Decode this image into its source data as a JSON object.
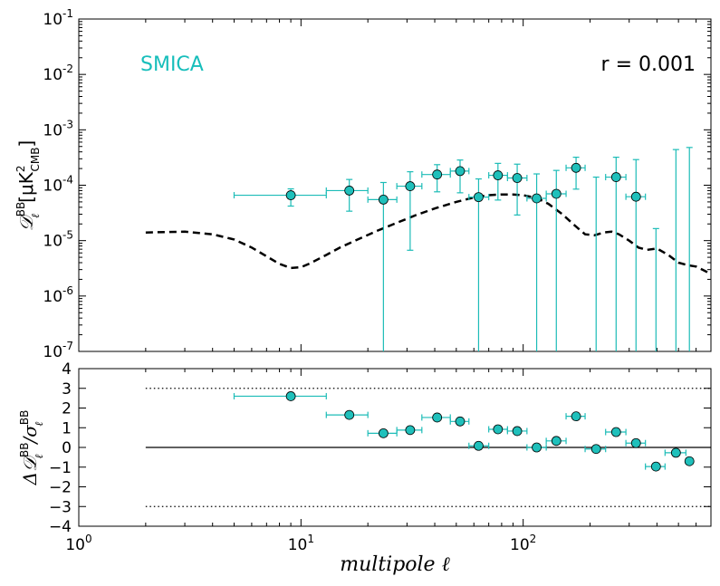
{
  "chart_data": [
    {
      "type": "scatter",
      "panel": "top",
      "xscale": "log",
      "yscale": "log",
      "xlim": [
        1,
        700
      ],
      "ylim": [
        1e-07,
        0.1
      ],
      "ylabel": "D_ℓ^BB [μK²_CMB]",
      "ylabel_main": "𝒟",
      "ylabel_sup": "BB",
      "ylabel_sub": "ℓ",
      "ylabel_units": "[μK",
      "ylabel_units_sup": "2",
      "ylabel_units_sub": "CMB",
      "ylabel_units_close": "]",
      "yticks": [
        1e-07,
        1e-06,
        1e-05,
        0.0001,
        0.001,
        0.01,
        0.1
      ],
      "ytick_bases": [
        "10",
        "10",
        "10",
        "10",
        "10",
        "10",
        "10"
      ],
      "ytick_exps": [
        "-7",
        "-6",
        "-5",
        "-4",
        "-3",
        "-2",
        "-1"
      ],
      "annotation_left": "SMICA",
      "annotation_right": "r = 0.001",
      "annotation_left_color": "#17bebb",
      "data_color": "#1cbcb7",
      "model_color": "#000000",
      "model": {
        "x": [
          2,
          3,
          4,
          5,
          6,
          7,
          8,
          9,
          10,
          11,
          13,
          15,
          18,
          22,
          27,
          33,
          40,
          50,
          60,
          70,
          80,
          90,
          100,
          110,
          120,
          130,
          150,
          170,
          190,
          210,
          230,
          250,
          270,
          300,
          330,
          360,
          400,
          450,
          500,
          550,
          600,
          650,
          700
        ],
        "y": [
          1.4e-05,
          1.45e-05,
          1.3e-05,
          1.05e-05,
          7.5e-06,
          5.2e-06,
          3.8e-06,
          3.2e-06,
          3.3e-06,
          3.9e-06,
          5.5e-06,
          7.5e-06,
          1.05e-05,
          1.5e-05,
          2.1e-05,
          2.9e-05,
          3.8e-05,
          5e-05,
          6e-05,
          6.6e-05,
          6.8e-05,
          6.8e-05,
          6.6e-05,
          6.1e-05,
          5.4e-05,
          4.6e-05,
          3e-05,
          1.9e-05,
          1.3e-05,
          1.25e-05,
          1.4e-05,
          1.45e-05,
          1.3e-05,
          1e-05,
          7.5e-06,
          6.8e-06,
          7.2e-06,
          5.5e-06,
          4e-06,
          3.6e-06,
          3.4e-06,
          2.9e-06,
          2.5e-06
        ]
      },
      "points": [
        {
          "x": 9,
          "xlo": 5,
          "xhi": 13,
          "y": 6.6e-05,
          "ylo": 4.2e-05,
          "yhi": 8.6e-05
        },
        {
          "x": 16.5,
          "xlo": 13,
          "xhi": 20,
          "y": 8e-05,
          "ylo": 3.4e-05,
          "yhi": 0.000127
        },
        {
          "x": 23.5,
          "xlo": 20,
          "xhi": 27,
          "y": 5.5e-05,
          "ylo": 1e-07,
          "yhi": 0.000112
        },
        {
          "x": 31,
          "xlo": 27,
          "xhi": 35,
          "y": 9.6e-05,
          "ylo": 6.7e-06,
          "yhi": 0.000175
        },
        {
          "x": 41,
          "xlo": 35,
          "xhi": 47,
          "y": 0.000156,
          "ylo": 7.6e-05,
          "yhi": 0.000235
        },
        {
          "x": 52,
          "xlo": 47,
          "xhi": 57,
          "y": 0.00018,
          "ylo": 7.3e-05,
          "yhi": 0.000285
        },
        {
          "x": 63,
          "xlo": 57,
          "xhi": 70,
          "y": 6.1e-05,
          "ylo": 1e-07,
          "yhi": 0.00013
        },
        {
          "x": 77,
          "xlo": 70,
          "xhi": 85,
          "y": 0.000151,
          "ylo": 5.4e-05,
          "yhi": 0.000248
        },
        {
          "x": 94,
          "xlo": 85,
          "xhi": 104,
          "y": 0.000135,
          "ylo": 2.9e-05,
          "yhi": 0.00024
        },
        {
          "x": 115,
          "xlo": 104,
          "xhi": 127,
          "y": 5.8e-05,
          "ylo": 1e-07,
          "yhi": 0.00016
        },
        {
          "x": 141,
          "xlo": 127,
          "xhi": 156,
          "y": 7e-05,
          "ylo": 1e-07,
          "yhi": 0.000185
        },
        {
          "x": 173,
          "xlo": 156,
          "xhi": 190,
          "y": 0.000206,
          "ylo": 8.5e-05,
          "yhi": 0.00032
        },
        {
          "x": 213,
          "xlo": 190,
          "xhi": 235,
          "y": null,
          "ylo": 1e-07,
          "yhi": 0.00014
        },
        {
          "x": 262,
          "xlo": 235,
          "xhi": 290,
          "y": 0.00014,
          "ylo": 1e-07,
          "yhi": 0.00032
        },
        {
          "x": 322,
          "xlo": 290,
          "xhi": 355,
          "y": 6.2e-05,
          "ylo": 1e-07,
          "yhi": 0.00029
        },
        {
          "x": 396,
          "xlo": 355,
          "xhi": 435,
          "y": null,
          "ylo": 1e-07,
          "yhi": 1.65e-05
        },
        {
          "x": 487,
          "xlo": 435,
          "xhi": 540,
          "y": null,
          "ylo": 1e-07,
          "yhi": 0.00044
        },
        {
          "x": 560,
          "xlo": 540,
          "xhi": 580,
          "y": null,
          "ylo": 1e-07,
          "yhi": 0.00048
        }
      ]
    },
    {
      "type": "scatter",
      "panel": "bottom",
      "xscale": "log",
      "xlim": [
        1,
        700
      ],
      "ylim": [
        -4,
        4
      ],
      "xlabel": "multipole ℓ",
      "ylabel": "ΔD_ℓ^BB / σ_ℓ^BB",
      "ylabel_main": "Δ𝒟",
      "ylabel_sup": "BB",
      "ylabel_sub": "ℓ",
      "ylabel_div": "/σ",
      "ylabel_div_sup": "BB",
      "ylabel_div_sub": "ℓ",
      "xticks": [
        1,
        10,
        100
      ],
      "xtick_bases": [
        "10",
        "10",
        "10"
      ],
      "xtick_exps": [
        "0",
        "1",
        "2"
      ],
      "yticks": [
        -4,
        -3,
        -2,
        -1,
        0,
        1,
        2,
        3,
        4
      ],
      "ytick_labels": [
        "−4",
        "−3",
        "−2",
        "−1",
        "0",
        "1",
        "2",
        "3",
        "4"
      ],
      "hlines": [
        {
          "y": 0,
          "style": "solid",
          "xfrom": 2,
          "xto": 700
        },
        {
          "y": 3,
          "style": "dotted",
          "xfrom": 2,
          "xto": 700
        },
        {
          "y": -3,
          "style": "dotted",
          "xfrom": 2,
          "xto": 700
        }
      ],
      "points": [
        {
          "x": 9,
          "xlo": 5,
          "xhi": 13,
          "y": 2.6
        },
        {
          "x": 16.5,
          "xlo": 13,
          "xhi": 20,
          "y": 1.65
        },
        {
          "x": 23.5,
          "xlo": 20,
          "xhi": 27,
          "y": 0.72
        },
        {
          "x": 31,
          "xlo": 27,
          "xhi": 35,
          "y": 0.88
        },
        {
          "x": 41,
          "xlo": 35,
          "xhi": 47,
          "y": 1.52
        },
        {
          "x": 52,
          "xlo": 47,
          "xhi": 57,
          "y": 1.32
        },
        {
          "x": 63,
          "xlo": 57,
          "xhi": 70,
          "y": 0.08
        },
        {
          "x": 77,
          "xlo": 70,
          "xhi": 85,
          "y": 0.92
        },
        {
          "x": 94,
          "xlo": 85,
          "xhi": 104,
          "y": 0.83
        },
        {
          "x": 115,
          "xlo": 104,
          "xhi": 127,
          "y": 0.0
        },
        {
          "x": 141,
          "xlo": 127,
          "xhi": 156,
          "y": 0.33
        },
        {
          "x": 173,
          "xlo": 156,
          "xhi": 190,
          "y": 1.58
        },
        {
          "x": 213,
          "xlo": 190,
          "xhi": 235,
          "y": -0.08
        },
        {
          "x": 262,
          "xlo": 235,
          "xhi": 290,
          "y": 0.78
        },
        {
          "x": 322,
          "xlo": 290,
          "xhi": 355,
          "y": 0.22
        },
        {
          "x": 396,
          "xlo": 355,
          "xhi": 435,
          "y": -0.97
        },
        {
          "x": 487,
          "xlo": 435,
          "xhi": 540,
          "y": -0.27
        },
        {
          "x": 560,
          "xlo": 540,
          "xhi": 580,
          "y": -0.7
        }
      ]
    }
  ]
}
